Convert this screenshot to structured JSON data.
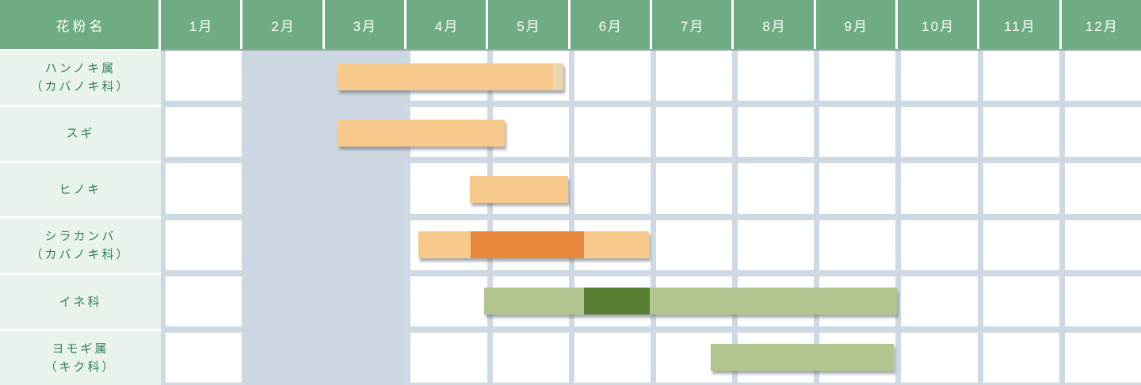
{
  "table": {
    "corner_header": "花粉名",
    "months": [
      "1月",
      "2月",
      "3月",
      "4月",
      "5月",
      "6月",
      "7月",
      "8月",
      "9月",
      "10月",
      "11月",
      "12月"
    ]
  },
  "rows": [
    {
      "label_lines": [
        "ハンノキ属",
        "（カバノキ科）"
      ],
      "segments": [
        {
          "start": 3.16,
          "end": 5.8,
          "color": "orange_light"
        },
        {
          "start": 5.8,
          "end": 5.93,
          "color": "orange_pale"
        }
      ]
    },
    {
      "label_lines": [
        "スギ"
      ],
      "segments": [
        {
          "start": 3.16,
          "end": 5.21,
          "color": "orange_light"
        }
      ]
    },
    {
      "label_lines": [
        "ヒノキ"
      ],
      "segments": [
        {
          "start": 4.78,
          "end": 5.99,
          "color": "orange_light"
        }
      ]
    },
    {
      "label_lines": [
        "シラカンバ",
        "（カバノキ科）"
      ],
      "segments": [
        {
          "start": 4.15,
          "end": 4.79,
          "color": "orange_light"
        },
        {
          "start": 4.79,
          "end": 6.18,
          "color": "orange_dark"
        },
        {
          "start": 6.18,
          "end": 6.98,
          "color": "orange_light"
        }
      ]
    },
    {
      "label_lines": [
        "イネ科"
      ],
      "segments": [
        {
          "start": 4.96,
          "end": 6.18,
          "color": "green_light"
        },
        {
          "start": 6.18,
          "end": 6.99,
          "color": "green_dark"
        },
        {
          "start": 6.99,
          "end": 10.01,
          "color": "green_light"
        }
      ]
    },
    {
      "label_lines": [
        "ヨモギ属",
        "（キク科）"
      ],
      "segments": [
        {
          "start": 7.73,
          "end": 9.97,
          "color": "green_light"
        }
      ]
    }
  ],
  "highlight_band": {
    "start_month": 2.0,
    "end_month": 4.0
  },
  "colors": {
    "header_bg": "#6FAC83",
    "header_text": "#FDFFFD",
    "header_bottom_line": "#9EA5AC",
    "label_bg": "#E9F2EB",
    "label_text": "#2E8157",
    "grid_line": "#CFD9E4",
    "cell_bg": "#FFFFFF",
    "band": "#CDD7E2",
    "orange_light": "#F8C98C",
    "orange_pale": "#EAD5B1",
    "orange_dark": "#E8873C",
    "green_light": "#B2C58E",
    "green_dark": "#567F33",
    "bar_shadow": "rgba(100,106,112,0.55)"
  },
  "chart_data": {
    "type": "table",
    "categories": [
      "1月",
      "2月",
      "3月",
      "4月",
      "5月",
      "6月",
      "7月",
      "8月",
      "9月",
      "10月",
      "11月",
      "12月"
    ],
    "row_header": "花粉名",
    "highlighted_month_columns": [
      "2月",
      "3月"
    ],
    "month_scale_note": "start/end are decimal months; 3.16 = early-mid March, 5.99 = end of May",
    "rows": [
      {
        "name": "ハンノキ属（カバノキ科）",
        "periods": [
          {
            "start_month": 3.16,
            "end_month": 5.8,
            "level": "normal"
          },
          {
            "start_month": 5.8,
            "end_month": 5.93,
            "level": "trailing"
          }
        ]
      },
      {
        "name": "スギ",
        "periods": [
          {
            "start_month": 3.16,
            "end_month": 5.21,
            "level": "normal"
          }
        ]
      },
      {
        "name": "ヒノキ",
        "periods": [
          {
            "start_month": 4.78,
            "end_month": 5.99,
            "level": "normal"
          }
        ]
      },
      {
        "name": "シラカンバ（カバノキ科）",
        "periods": [
          {
            "start_month": 4.15,
            "end_month": 4.79,
            "level": "normal"
          },
          {
            "start_month": 4.79,
            "end_month": 6.18,
            "level": "peak"
          },
          {
            "start_month": 6.18,
            "end_month": 6.98,
            "level": "normal"
          }
        ]
      },
      {
        "name": "イネ科",
        "periods": [
          {
            "start_month": 4.96,
            "end_month": 6.18,
            "level": "normal"
          },
          {
            "start_month": 6.18,
            "end_month": 6.99,
            "level": "peak"
          },
          {
            "start_month": 6.99,
            "end_month": 10.01,
            "level": "normal"
          }
        ]
      },
      {
        "name": "ヨモギ属（キク科）",
        "periods": [
          {
            "start_month": 7.73,
            "end_month": 9.97,
            "level": "normal"
          }
        ]
      }
    ],
    "legend_colors": {
      "normal_tree_pollen": "#F8C98C",
      "peak_tree_pollen": "#E8873C",
      "normal_grass_weed_pollen": "#B2C58E",
      "peak_grass_weed_pollen": "#567F33"
    }
  }
}
